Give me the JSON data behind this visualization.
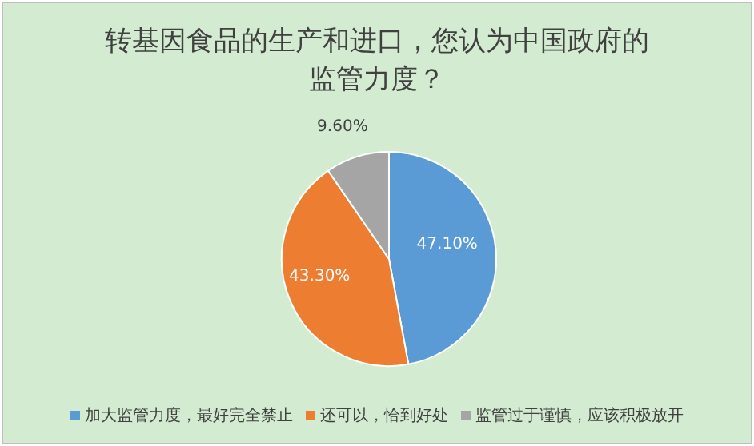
{
  "chart_data": {
    "type": "pie",
    "title": "转基因食品的生产和进口，您认为中国政府的监管力度？",
    "categories": [
      "加大监管力度，最好完全禁止",
      "还可以，恰到好处",
      "监管过于谨慎，应该积极放开"
    ],
    "values": [
      47.1,
      43.3,
      9.6
    ],
    "colors": [
      "#5b9bd5",
      "#ed7d31",
      "#a5a5a5"
    ],
    "value_labels": [
      "47.10%",
      "43.30%",
      "9.60%"
    ],
    "legend": "bottom"
  }
}
